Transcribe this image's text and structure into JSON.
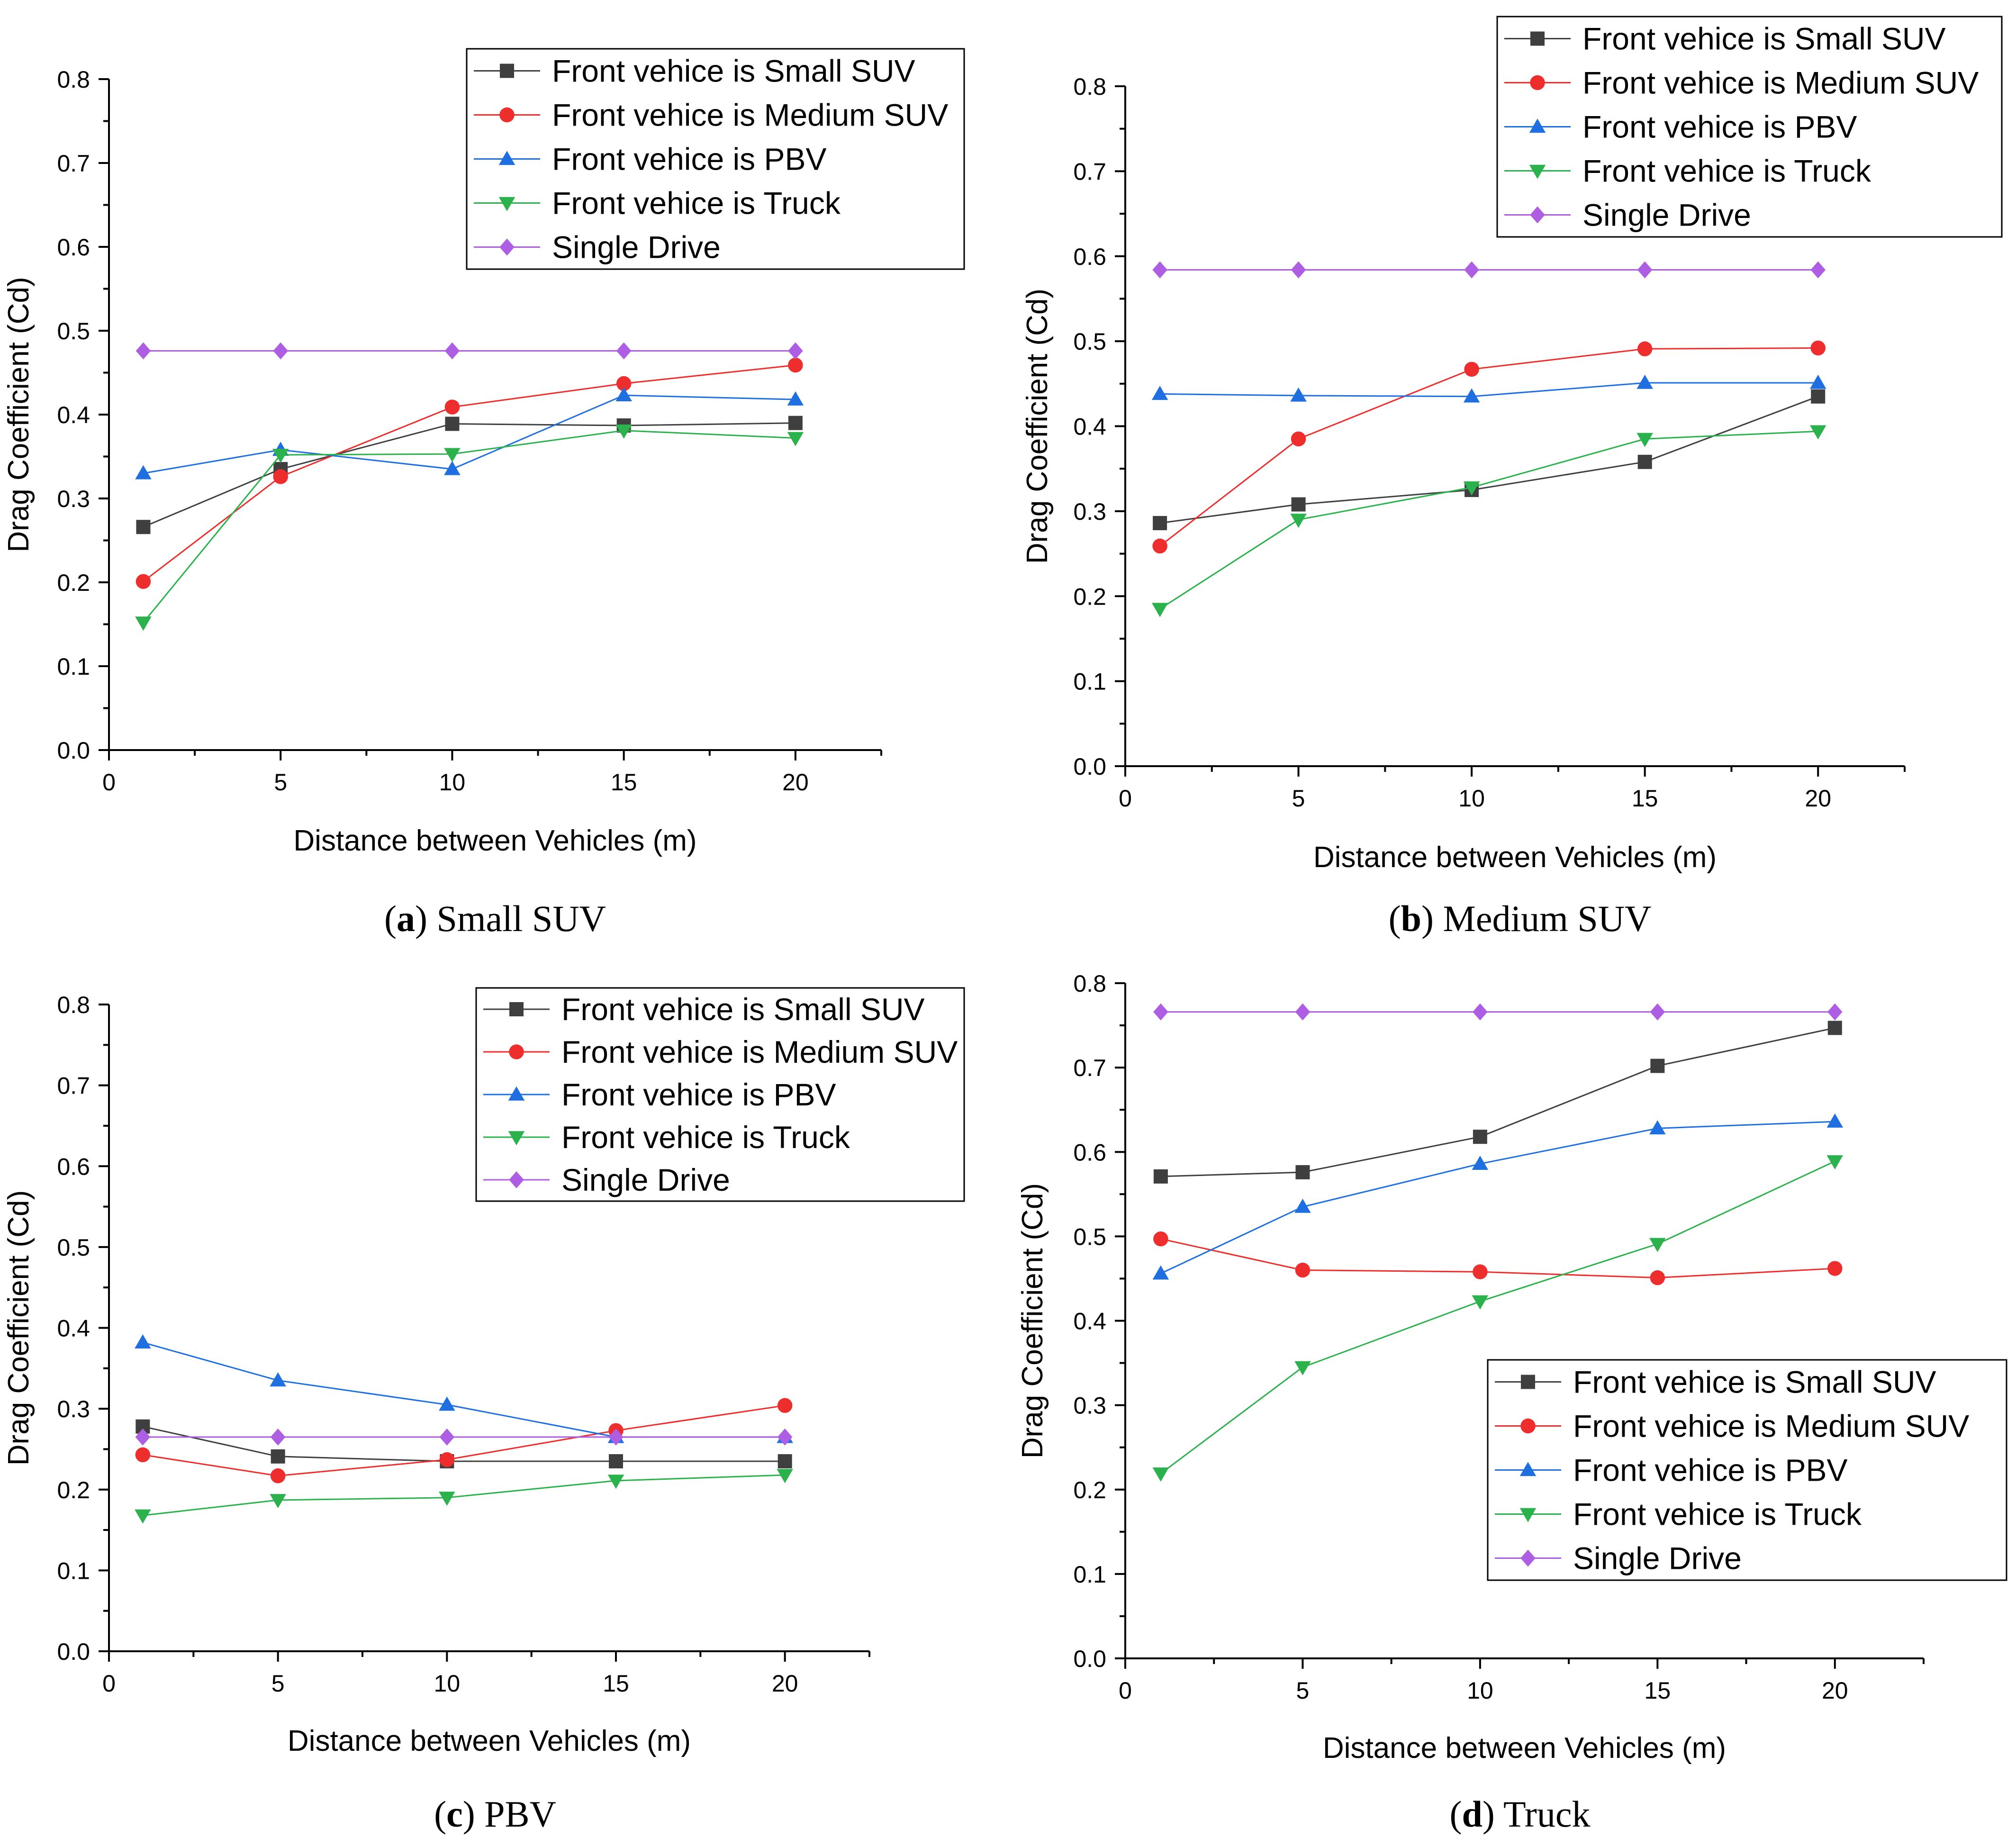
{
  "colors": {
    "small_suv": "#3f3f3f",
    "medium_suv": "#ee2d2d",
    "pbv": "#1f6fe0",
    "truck": "#2bb24c",
    "single": "#ad5ee2"
  },
  "chart_data": [
    {
      "type": "line",
      "panel": "a",
      "caption_letter": "a",
      "caption_text": "Small SUV",
      "xlabel": "Distance between Vehicles (m)",
      "ylabel": "Drag Coefficient (Cd)",
      "xlim": [
        0,
        22.5
      ],
      "ylim": [
        0,
        0.8
      ],
      "xticks": [
        "0",
        "5",
        "10",
        "15",
        "20"
      ],
      "yticks": [
        "0.0",
        "0.1",
        "0.2",
        "0.3",
        "0.4",
        "0.5",
        "0.6",
        "0.7",
        "0.8"
      ],
      "legend_position": "top-right",
      "x": [
        1,
        5,
        10,
        15,
        20
      ],
      "series": [
        {
          "name": "Front vehice is Small SUV",
          "marker": "square",
          "color": "#3f3f3f",
          "values": [
            0.266,
            0.335,
            0.389,
            0.387,
            0.39
          ]
        },
        {
          "name": "Front vehice is Medium SUV",
          "marker": "circle",
          "color": "#ee2d2d",
          "values": [
            0.201,
            0.326,
            0.409,
            0.437,
            0.459
          ]
        },
        {
          "name": "Front vehice is PBV",
          "marker": "triangle-up",
          "color": "#1f6fe0",
          "values": [
            0.33,
            0.358,
            0.335,
            0.423,
            0.418
          ]
        },
        {
          "name": "Front vehice is Truck",
          "marker": "triangle-down",
          "color": "#2bb24c",
          "values": [
            0.152,
            0.352,
            0.353,
            0.381,
            0.372
          ]
        },
        {
          "name": "Single Drive",
          "marker": "diamond",
          "color": "#ad5ee2",
          "values": [
            0.476,
            0.476,
            0.476,
            0.476,
            0.476
          ]
        }
      ]
    },
    {
      "type": "line",
      "panel": "b",
      "caption_letter": "b",
      "caption_text": "Medium SUV",
      "xlabel": "Distance between Vehicles (m)",
      "ylabel": "Drag Coefficient (Cd)",
      "xlim": [
        0,
        22.5
      ],
      "ylim": [
        0,
        0.8
      ],
      "xticks": [
        "0",
        "5",
        "10",
        "15",
        "20"
      ],
      "yticks": [
        "0.0",
        "0.1",
        "0.2",
        "0.3",
        "0.4",
        "0.5",
        "0.6",
        "0.7",
        "0.8"
      ],
      "legend_position": "top-right",
      "x": [
        1,
        5,
        10,
        15,
        20
      ],
      "series": [
        {
          "name": "Front vehice is Small SUV",
          "marker": "square",
          "color": "#3f3f3f",
          "values": [
            0.286,
            0.308,
            0.325,
            0.358,
            0.435
          ]
        },
        {
          "name": "Front vehice is Medium SUV",
          "marker": "circle",
          "color": "#ee2d2d",
          "values": [
            0.259,
            0.385,
            0.467,
            0.491,
            0.492
          ]
        },
        {
          "name": "Front vehice is PBV",
          "marker": "triangle-up",
          "color": "#1f6fe0",
          "values": [
            0.438,
            0.436,
            0.435,
            0.451,
            0.451
          ]
        },
        {
          "name": "Front vehice is Truck",
          "marker": "triangle-down",
          "color": "#2bb24c",
          "values": [
            0.185,
            0.29,
            0.328,
            0.385,
            0.394
          ]
        },
        {
          "name": "Single Drive",
          "marker": "diamond",
          "color": "#ad5ee2",
          "values": [
            0.584,
            0.584,
            0.584,
            0.584,
            0.584
          ]
        }
      ]
    },
    {
      "type": "line",
      "panel": "c",
      "caption_letter": "c",
      "caption_text": "PBV",
      "xlabel": "Distance between Vehicles (m)",
      "ylabel": "Drag Coefficient (Cd)",
      "xlim": [
        0,
        22.5
      ],
      "ylim": [
        0,
        0.8
      ],
      "xticks": [
        "0",
        "5",
        "10",
        "15",
        "20"
      ],
      "yticks": [
        "0.0",
        "0.1",
        "0.2",
        "0.3",
        "0.4",
        "0.5",
        "0.6",
        "0.7",
        "0.8"
      ],
      "legend_position": "top-right",
      "x": [
        1,
        5,
        10,
        15,
        20
      ],
      "series": [
        {
          "name": "Front vehice is Small SUV",
          "marker": "square",
          "color": "#3f3f3f",
          "values": [
            0.278,
            0.241,
            0.235,
            0.235,
            0.235
          ]
        },
        {
          "name": "Front vehice is Medium SUV",
          "marker": "circle",
          "color": "#ee2d2d",
          "values": [
            0.243,
            0.217,
            0.237,
            0.273,
            0.304
          ]
        },
        {
          "name": "Front vehice is PBV",
          "marker": "triangle-up",
          "color": "#1f6fe0",
          "values": [
            0.382,
            0.335,
            0.305,
            0.265,
            0.265
          ]
        },
        {
          "name": "Front vehice is Truck",
          "marker": "triangle-down",
          "color": "#2bb24c",
          "values": [
            0.168,
            0.187,
            0.19,
            0.211,
            0.218
          ]
        },
        {
          "name": "Single Drive",
          "marker": "diamond",
          "color": "#ad5ee2",
          "values": [
            0.265,
            0.265,
            0.265,
            0.265,
            0.265
          ]
        }
      ]
    },
    {
      "type": "line",
      "panel": "d",
      "caption_letter": "d",
      "caption_text": "Truck",
      "xlabel": "Distance between Vehicles (m)",
      "ylabel": "Drag Coefficient (Cd)",
      "xlim": [
        0,
        22.5
      ],
      "ylim": [
        0,
        0.8
      ],
      "xticks": [
        "0",
        "5",
        "10",
        "15",
        "20"
      ],
      "yticks": [
        "0.0",
        "0.1",
        "0.2",
        "0.3",
        "0.4",
        "0.5",
        "0.6",
        "0.7",
        "0.8"
      ],
      "legend_position": "bottom-right",
      "x": [
        1,
        5,
        10,
        15,
        20
      ],
      "series": [
        {
          "name": "Front vehice is Small SUV",
          "marker": "square",
          "color": "#3f3f3f",
          "values": [
            0.571,
            0.576,
            0.618,
            0.702,
            0.747
          ]
        },
        {
          "name": "Front vehice is Medium SUV",
          "marker": "circle",
          "color": "#ee2d2d",
          "values": [
            0.497,
            0.46,
            0.458,
            0.451,
            0.462
          ]
        },
        {
          "name": "Front vehice is PBV",
          "marker": "triangle-up",
          "color": "#1f6fe0",
          "values": [
            0.456,
            0.535,
            0.586,
            0.628,
            0.636
          ]
        },
        {
          "name": "Front vehice is Truck",
          "marker": "triangle-down",
          "color": "#2bb24c",
          "values": [
            0.219,
            0.345,
            0.423,
            0.491,
            0.589
          ]
        },
        {
          "name": "Single Drive",
          "marker": "diamond",
          "color": "#ad5ee2",
          "values": [
            0.766,
            0.766,
            0.766,
            0.766,
            0.766
          ]
        }
      ]
    }
  ]
}
